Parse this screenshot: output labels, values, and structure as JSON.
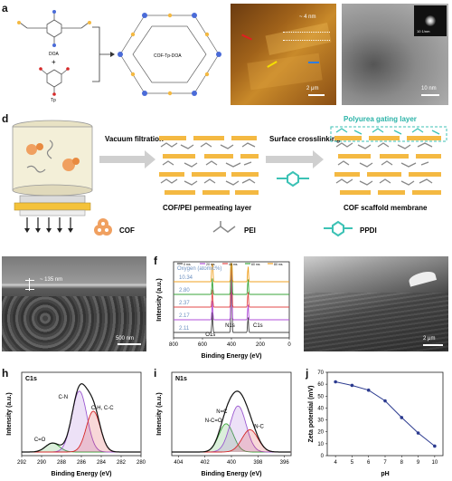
{
  "figure": {
    "panel_labels": [
      "a",
      "b",
      "c",
      "d",
      "e",
      "f",
      "g",
      "h",
      "i",
      "j"
    ]
  },
  "panel_a": {
    "monomer1": "DOA",
    "plus": "+",
    "monomer2": "Tp",
    "product": "COF-Tp-DOA"
  },
  "panel_b": {
    "height_label": "~ 4 nm",
    "scalebar": "2 μm"
  },
  "panel_c": {
    "scalebar": "10 nm",
    "inset_scalebar": "10 1/nm"
  },
  "panel_d": {
    "step1": "Vacuum filtration",
    "step2": "Surface crosslinking",
    "layer_mid": "COF/PEI permeating layer",
    "layer_top": "Polyurea gating layer",
    "layer_final": "COF scaffold membrane",
    "legend_cof": "COF",
    "legend_pei": "PEI",
    "legend_ppdi": "PPDI"
  },
  "panel_e": {
    "thickness": "~ 135 nm",
    "scalebar": "500 nm"
  },
  "panel_g": {
    "scalebar": "2 μm"
  },
  "colors": {
    "cof_orange": "#f4b942",
    "pei_gray": "#888888",
    "ppdi_teal": "#3cc2b5",
    "polyurea_label": "#2bb3a8"
  },
  "chart_data": [
    {
      "id": "f",
      "type": "line",
      "xlabel": "Binding Energy (eV)",
      "ylabel": "Intensity (a.u.)",
      "xlim": [
        800,
        0
      ],
      "xticks": [
        800,
        600,
        400,
        200,
        0
      ],
      "legend": [
        "0 ms",
        "20 ms",
        "40 ms",
        "60 ms",
        "80 ms"
      ],
      "legend_colors": [
        "#444444",
        "#b04fd8",
        "#e34a4a",
        "#3aa63a",
        "#f0a020"
      ],
      "annotation_title": "Oxygen (atomic%)",
      "oxygen_values": [
        "2.11",
        "2.17",
        "2.37",
        "2.80",
        "10.34"
      ],
      "peaks": [
        "O1s",
        "N1s",
        "C1s"
      ]
    },
    {
      "id": "h",
      "type": "line",
      "title": "C1s",
      "xlabel": "Binding Energy (eV)",
      "ylabel": "Intensity (a.u.)",
      "xlim": [
        292,
        280
      ],
      "xticks": [
        292,
        290,
        288,
        286,
        284,
        282,
        280
      ],
      "components": [
        {
          "name": "C=O",
          "center": 288.9,
          "height": 0.12,
          "width": 0.7,
          "color": "#3aa63a"
        },
        {
          "name": "C-N",
          "center": 286.2,
          "height": 0.82,
          "width": 0.75,
          "color": "#9b59d0"
        },
        {
          "name": "C-H, C-C",
          "center": 284.8,
          "height": 0.55,
          "width": 0.7,
          "color": "#d62828"
        }
      ]
    },
    {
      "id": "i",
      "type": "line",
      "title": "N1s",
      "xlabel": "Binding Energy (eV)",
      "ylabel": "Intensity (a.u.)",
      "xlim": [
        404.5,
        395.5
      ],
      "xticks": [
        404,
        402,
        400,
        398,
        396
      ],
      "components": [
        {
          "name": "N-C=O",
          "center": 400.4,
          "height": 0.38,
          "width": 0.55,
          "color": "#3aa63a"
        },
        {
          "name": "N=C",
          "center": 399.5,
          "height": 0.62,
          "width": 0.6,
          "color": "#9b59d0"
        },
        {
          "name": "N-C",
          "center": 398.6,
          "height": 0.3,
          "width": 0.6,
          "color": "#d62828"
        }
      ]
    },
    {
      "id": "j",
      "type": "line",
      "xlabel": "pH",
      "ylabel": "Zeta potential (mV)",
      "xlim": [
        3.5,
        10.5
      ],
      "ylim": [
        0,
        70
      ],
      "xticks": [
        4,
        5,
        6,
        7,
        8,
        9,
        10
      ],
      "yticks": [
        0,
        10,
        20,
        30,
        40,
        50,
        60,
        70
      ],
      "x": [
        4,
        5,
        6,
        7,
        8,
        9,
        10
      ],
      "y": [
        62,
        59,
        55,
        46,
        32,
        19,
        8
      ],
      "color": "#2b3a8f"
    }
  ]
}
